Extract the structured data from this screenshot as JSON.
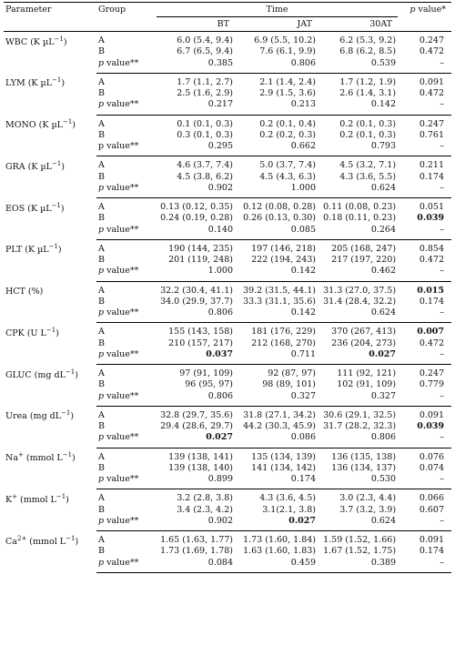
{
  "header": {
    "parameter": "Parameter",
    "group": "Group",
    "time": "Time",
    "pvalue": "p value*",
    "bt": "BT",
    "jat": "JAT",
    "at30": "30AT"
  },
  "rows": [
    {
      "name": "WBC (K µL",
      "sup": "−1",
      "name_tail": ")",
      "A": [
        "6.0 (5.4, 9.4)",
        "6.9 (5.5, 10.2)",
        "6.2 (5.3, 9.2)",
        "0.247"
      ],
      "B": [
        "6.7 (6.5, 9.4)",
        "7.6 (6.1, 9.9)",
        "6.8 (6.2, 8.5)",
        "0.472"
      ],
      "P": [
        "0.385",
        "0.806",
        "0.539",
        "–"
      ],
      "pbold": [
        false,
        false,
        false
      ],
      "bbold": false,
      "abold": false,
      "plabel": "p value**"
    },
    {
      "name": "LYM (K µL",
      "sup": "−1",
      "name_tail": ")",
      "A": [
        "1.7 (1.1, 2.7)",
        "2.1 (1.4, 2.4)",
        "1.7 (1.2, 1.9)",
        "0.091"
      ],
      "B": [
        "2.5 (1.6, 2.9)",
        "2.9 (1.5, 3.6)",
        "2.6 (1.4, 3.1)",
        "0.472"
      ],
      "P": [
        "0.217",
        "0.213",
        "0.142",
        "–"
      ],
      "pbold": [
        false,
        false,
        false
      ],
      "bbold": false,
      "abold": false,
      "plabel": "p value**"
    },
    {
      "name": "MONO (K µL",
      "sup": "−1",
      "name_tail": ")",
      "A": [
        "0.1 (0.1, 0.3)",
        "0.2 (0.1, 0.4)",
        "0.2 (0.1, 0.3)",
        "0.247"
      ],
      "B": [
        "0.3 (0.1, 0.3)",
        "0.2 (0.2, 0.3)",
        "0.2 (0.1, 0.3)",
        "0.761"
      ],
      "P": [
        "0.295",
        "0.662",
        "0.793",
        "–"
      ],
      "pbold": [
        false,
        false,
        false
      ],
      "bbold": false,
      "abold": false,
      "plabel": "p value**"
    },
    {
      "name": "GRA (K µL",
      "sup": "−1",
      "name_tail": ")",
      "A": [
        "4.6 (3.7, 7.4)",
        "5.0 (3.7, 7.4)",
        "4.5 (3.2, 7.1)",
        "0.211"
      ],
      "B": [
        "4.5 (3.8, 6.2)",
        "4.5 (4.3, 6.3)",
        "4.3 (3.6, 5.5)",
        "0.174"
      ],
      "P": [
        "0.902",
        "1.000",
        "0.624",
        "–"
      ],
      "pbold": [
        false,
        false,
        false
      ],
      "bbold": false,
      "abold": false,
      "plabel": "p value**"
    },
    {
      "name": "EOS (K µL",
      "sup": "−1",
      "name_tail": ")",
      "A": [
        "0.13 (0.12, 0.35)",
        "0.12 (0.08, 0.28)",
        "0.11 (0.08, 0.23)",
        "0.051"
      ],
      "B": [
        "0.24 (0.19, 0.28)",
        "0.26 (0.13, 0.30)",
        "0.18 (0.11, 0.23)",
        "0.039"
      ],
      "P": [
        "0.140",
        "0.085",
        "0.264",
        "–"
      ],
      "pbold": [
        false,
        false,
        false
      ],
      "bbold": true,
      "abold": false,
      "plabel": "p value**"
    },
    {
      "name": "PLT (K µL",
      "sup": "−1",
      "name_tail": ")",
      "A": [
        "190 (144, 235)",
        "197 (146, 218)",
        "205 (168, 247)",
        "0.854"
      ],
      "B": [
        "201 (119, 248)",
        "222 (194, 243)",
        "217 (197, 220)",
        "0.472"
      ],
      "P": [
        "1.000",
        "0.142",
        "0.462",
        "–"
      ],
      "pbold": [
        false,
        false,
        false
      ],
      "bbold": false,
      "abold": false,
      "plabel": "p value**"
    },
    {
      "name": "HCT (%)",
      "sup": "",
      "name_tail": "",
      "A": [
        "32.2 (30.4, 41.1)",
        "39.2 (31.5, 44.1)",
        "31.3 (27.0, 37.5)",
        "0.015"
      ],
      "B": [
        "34.0 (29.9, 37.7)",
        "33.3 (31.1, 35.6)",
        "31.4 (28.4, 32.2)",
        "0.174"
      ],
      "P": [
        "0.806",
        "0.142",
        "0.624",
        "–"
      ],
      "pbold": [
        false,
        false,
        false
      ],
      "bbold": false,
      "abold": true,
      "plabel": "p value**"
    },
    {
      "name": "CPK (U L",
      "sup": "−1",
      "name_tail": ")",
      "A": [
        "155 (143, 158)",
        "181 (176, 229)",
        "370 (267, 413)",
        "0.007"
      ],
      "B": [
        "210 (157, 217)",
        "212 (168, 270)",
        "236 (204, 273)",
        "0.472"
      ],
      "P": [
        "0.037",
        "0.711",
        "0.027",
        "–"
      ],
      "pbold": [
        true,
        false,
        true
      ],
      "bbold": false,
      "abold": true,
      "plabel": "p value**"
    },
    {
      "name": "GLUC (mg dL",
      "sup": "−1",
      "name_tail": ")",
      "A": [
        "97 (91, 109)",
        "92 (87, 97)",
        "111 (92, 121)",
        "0.247"
      ],
      "B": [
        "96 (95, 97)",
        "98 (89, 101)",
        "102 (91, 109)",
        "0.779"
      ],
      "P": [
        "0.806",
        "0.327",
        "0.327",
        "–"
      ],
      "pbold": [
        false,
        false,
        false
      ],
      "bbold": false,
      "abold": false,
      "plabel": "p value**"
    },
    {
      "name": "Urea (mg dL",
      "sup": "−1",
      "name_tail": ")",
      "A": [
        "32.8 (29.7, 35.6)",
        "31.8 (27.1, 34.2)",
        "30.6 (29.1, 32.5)",
        "0.091"
      ],
      "B": [
        "29.4 (28.6, 29.7)",
        "44.2 (30.3, 45.9)",
        "31.7 (28.2, 32.3)",
        "0.039"
      ],
      "P": [
        "0.027",
        "0.086",
        "0.806",
        "–"
      ],
      "pbold": [
        true,
        false,
        false
      ],
      "bbold": true,
      "abold": false,
      "plabel": "p value**"
    },
    {
      "name": "Na",
      "sup": "+",
      "name_tail": " (mmol L",
      "sup2": "−1",
      "name_tail2": ")",
      "A": [
        "139 (138, 141)",
        "135 (134, 139)",
        "136 (135, 138)",
        "0.076"
      ],
      "B": [
        "139 (138, 140)",
        "141 (134, 142)",
        "136 (134, 137)",
        "0.074"
      ],
      "P": [
        "0.899",
        "0.174",
        "0.530",
        "–"
      ],
      "pbold": [
        false,
        false,
        false
      ],
      "bbold": false,
      "abold": false,
      "plabel": "p value**"
    },
    {
      "name": "K",
      "sup": "+",
      "name_tail": " (mmol L",
      "sup2": "−1",
      "name_tail2": ")",
      "A": [
        "3.2 (2.8, 3.8)",
        "4.3 (3.6, 4.5)",
        "3.0 (2.3, 4.4)",
        "0.066"
      ],
      "B": [
        "3.4 (2.3, 4.2)",
        "3.1(2.1, 3.8)",
        "3.7 (3.2, 3.9)",
        "0.607"
      ],
      "P": [
        "0.902",
        "0.027",
        "0.624",
        "–"
      ],
      "pbold": [
        false,
        true,
        false
      ],
      "bbold": false,
      "abold": false,
      "plabel": "p value**"
    },
    {
      "name": "Ca",
      "sup": "2+",
      "name_tail": " (mmol L",
      "sup2": "−1",
      "name_tail2": ")",
      "A": [
        "1.65 (1.63, 1.77)",
        "1.73 (1.60, 1.84)",
        "1.59 (1.52, 1.66)",
        "0.091"
      ],
      "B": [
        "1.73 (1.69, 1.78)",
        "1.63 (1.60, 1.83)",
        "1.67 (1.52, 1.75)",
        "0.174"
      ],
      "P": [
        "0.084",
        "0.459",
        "0.389",
        "–"
      ],
      "pbold": [
        false,
        false,
        false
      ],
      "bbold": false,
      "abold": false,
      "plabel": "p value**"
    }
  ],
  "group_labels": {
    "a": "A",
    "b": "B"
  },
  "mono_plabel": "p value**"
}
